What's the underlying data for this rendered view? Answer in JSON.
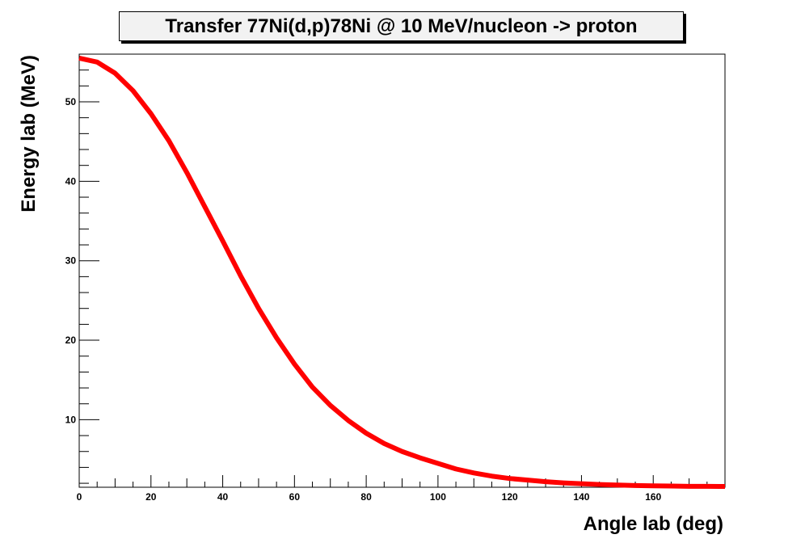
{
  "chart_data": {
    "type": "line",
    "title": "Transfer 77Ni(d,p)78Ni @ 10 MeV/nucleon -> proton",
    "xlabel": "Angle lab (deg)",
    "ylabel": "Energy lab (MeV)",
    "xlim": [
      0,
      180
    ],
    "ylim": [
      1.5,
      56
    ],
    "x_ticks": [
      0,
      20,
      40,
      60,
      80,
      100,
      120,
      140,
      160
    ],
    "y_ticks": [
      10,
      20,
      30,
      40,
      50
    ],
    "grid": false,
    "line_color": "#ff0000",
    "series": [
      {
        "x": [
          0,
          5,
          10,
          15,
          20,
          25,
          30,
          35,
          40,
          45,
          50,
          55,
          60,
          65,
          70,
          75,
          80,
          85,
          90,
          95,
          100,
          105,
          110,
          115,
          120,
          125,
          130,
          135,
          140,
          145,
          150,
          155,
          160,
          165,
          170,
          175,
          180
        ],
        "y": [
          55.5,
          55.0,
          53.6,
          51.4,
          48.5,
          45.1,
          41.1,
          36.8,
          32.5,
          28.1,
          24.0,
          20.3,
          17.0,
          14.1,
          11.8,
          9.9,
          8.3,
          7.0,
          6.0,
          5.2,
          4.5,
          3.8,
          3.3,
          2.9,
          2.6,
          2.4,
          2.2,
          2.05,
          1.95,
          1.85,
          1.78,
          1.72,
          1.68,
          1.65,
          1.62,
          1.61,
          1.6
        ]
      }
    ]
  }
}
